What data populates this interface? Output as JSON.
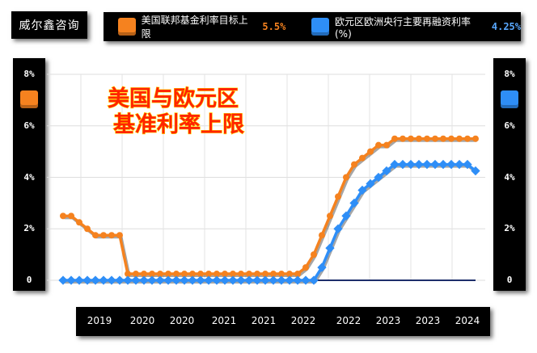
{
  "brand": "威尔鑫咨询",
  "legend": [
    {
      "label": "美国联邦基金利率目标上限",
      "value": "5.5%",
      "color": "#f5821f",
      "value_color": "#f5821f"
    },
    {
      "label": "欧元区欧洲央行主要再融资利率(%)",
      "value": "4.25%",
      "color": "#2e8ef7",
      "value_color": "#59a8ff"
    }
  ],
  "chart_data": {
    "type": "line",
    "title_lines": [
      "美国与欧元区",
      "基准利率上限"
    ],
    "x_tick_labels": [
      "2019",
      "2020",
      "2020",
      "2021",
      "2021",
      "2022",
      "2022",
      "2023",
      "2023",
      "2024"
    ],
    "y_ticks_left": [
      "0",
      "2%",
      "4%",
      "6%",
      "8%"
    ],
    "y_ticks_right": [
      "0",
      "2%",
      "4%",
      "6%",
      "8%"
    ],
    "ylim": [
      0,
      8
    ],
    "grid": true,
    "series": [
      {
        "name": "美国联邦基金利率目标上限",
        "color": "#f5821f",
        "values": [
          2.5,
          2.5,
          2.25,
          2.0,
          1.75,
          1.75,
          1.75,
          1.75,
          0.25,
          0.25,
          0.25,
          0.25,
          0.25,
          0.25,
          0.25,
          0.25,
          0.25,
          0.25,
          0.25,
          0.25,
          0.25,
          0.25,
          0.25,
          0.25,
          0.25,
          0.25,
          0.25,
          0.25,
          0.25,
          0.25,
          0.5,
          1.0,
          1.75,
          2.5,
          3.25,
          4.0,
          4.5,
          4.75,
          5.0,
          5.25,
          5.25,
          5.5,
          5.5,
          5.5,
          5.5,
          5.5,
          5.5,
          5.5,
          5.5,
          5.5,
          5.5,
          5.5
        ]
      },
      {
        "name": "欧元区欧洲央行主要再融资利率(%)",
        "color": "#2e8ef7",
        "values": [
          0,
          0,
          0,
          0,
          0,
          0,
          0,
          0,
          0,
          0,
          0,
          0,
          0,
          0,
          0,
          0,
          0,
          0,
          0,
          0,
          0,
          0,
          0,
          0,
          0,
          0,
          0,
          0,
          0,
          0,
          0,
          0,
          0.5,
          1.25,
          2.0,
          2.5,
          3.0,
          3.5,
          3.75,
          4.0,
          4.25,
          4.5,
          4.5,
          4.5,
          4.5,
          4.5,
          4.5,
          4.5,
          4.5,
          4.5,
          4.5,
          4.25
        ]
      }
    ]
  }
}
